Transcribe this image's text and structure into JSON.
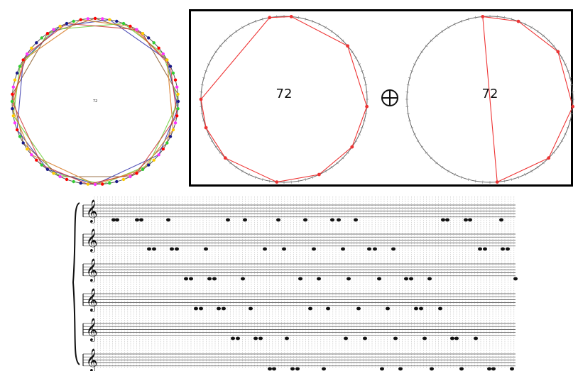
{
  "left_diagram": {
    "label": "72",
    "subdivisions": 72,
    "polygon_colors": [
      "#8b5a2b",
      "#ff55ff",
      "#66cc33",
      "#3333aa",
      "#d4a017",
      "#cc3333"
    ],
    "dot_colors": [
      "#ff0000",
      "#1a1a8a",
      "#ff33ff",
      "#33cc33",
      "#ffcc00"
    ]
  },
  "right_panel": {
    "left_circle_label": "72",
    "operator_symbol": "⊕",
    "right_circle_label": "72",
    "subdivisions": 72,
    "line_color": "#ee3333"
  },
  "score": {
    "staff_count": 6,
    "clef_glyph": "𝄞"
  }
}
